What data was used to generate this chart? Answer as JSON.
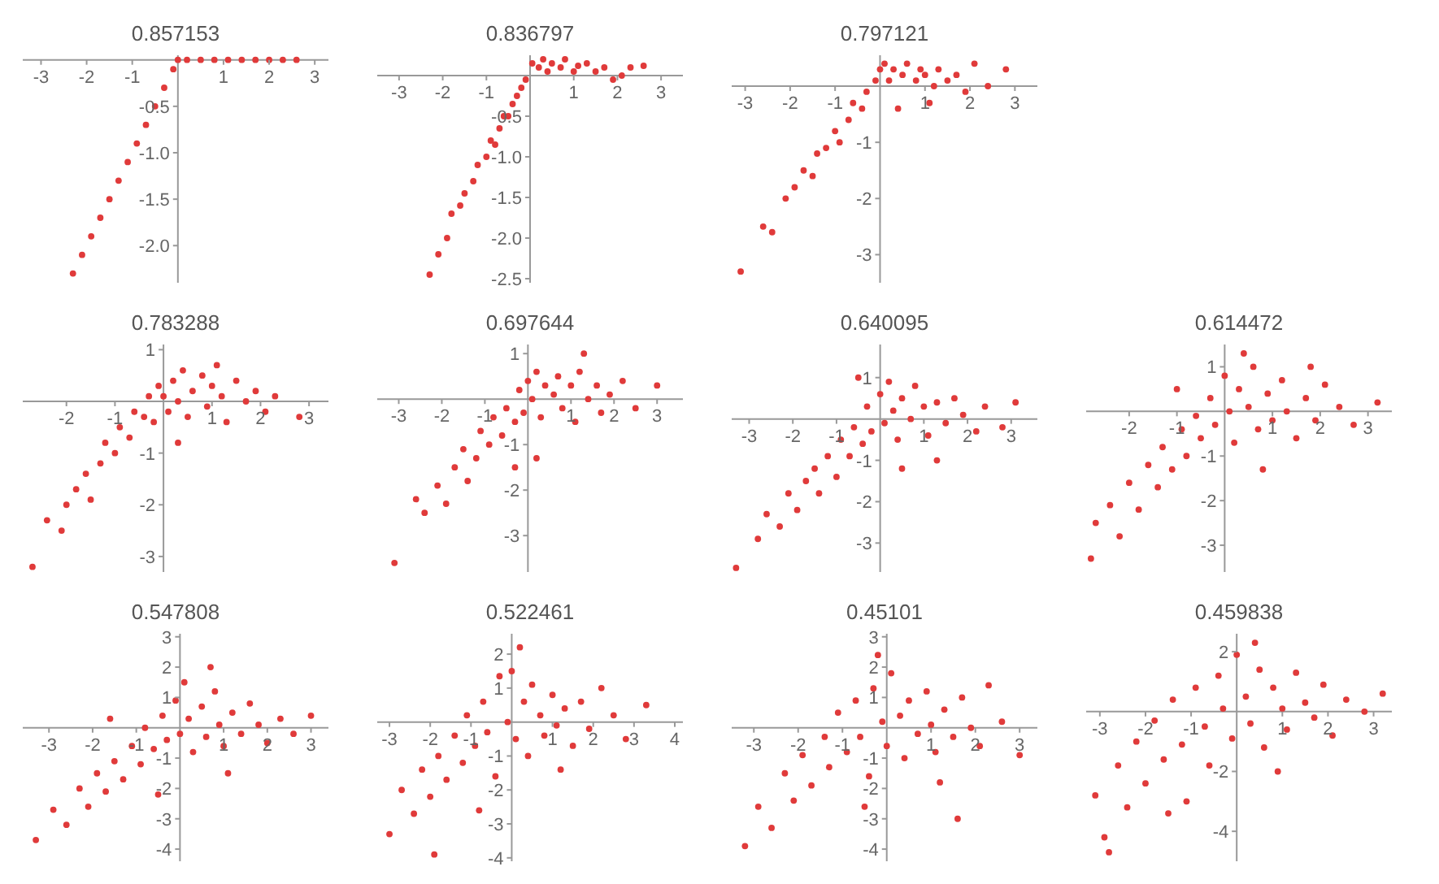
{
  "chart_data": [
    {
      "type": "scatter",
      "title": "0.857153",
      "color": "#e03a3a",
      "marker": "circle",
      "xlim": [
        -3.4,
        3.3
      ],
      "ylim": [
        -2.4,
        0.05
      ],
      "xticks": [
        -3,
        -2,
        -1,
        1,
        2,
        3
      ],
      "yticks": [
        {
          "value": -0.5,
          "label": "-0.5"
        },
        {
          "value": -1,
          "label": "-1.0"
        },
        {
          "value": -1.5,
          "label": "-1.5"
        },
        {
          "value": -2,
          "label": "-2.0"
        }
      ],
      "x": [
        -2.3,
        -2.1,
        -1.9,
        -1.7,
        -1.5,
        -1.3,
        -1.1,
        -0.9,
        -0.7,
        -0.5,
        -0.3,
        -0.1,
        0,
        0.2,
        0.5,
        0.8,
        1.1,
        1.4,
        1.7,
        2.0,
        2.3,
        2.6
      ],
      "values": [
        -2.3,
        -2.1,
        -1.9,
        -1.7,
        -1.5,
        -1.3,
        -1.1,
        -0.9,
        -0.7,
        -0.5,
        -0.3,
        -0.1,
        0,
        0,
        0,
        0,
        0,
        0,
        0,
        0,
        0,
        0
      ]
    },
    {
      "type": "scatter",
      "title": "0.836797",
      "color": "#e03a3a",
      "marker": "circle",
      "xlim": [
        -3.5,
        3.5
      ],
      "ylim": [
        -2.55,
        0.25
      ],
      "xticks": [
        -3,
        -2,
        -1,
        1,
        2,
        3
      ],
      "yticks": [
        {
          "value": -0.5,
          "label": "-0.5"
        },
        {
          "value": -1,
          "label": "-1.0"
        },
        {
          "value": -1.5,
          "label": "-1.5"
        },
        {
          "value": -2,
          "label": "-2.0"
        },
        {
          "value": -2.5,
          "label": "-2.5"
        }
      ],
      "x": [
        -2.3,
        -2.1,
        -1.9,
        -1.8,
        -1.6,
        -1.5,
        -1.3,
        -1.2,
        -1.0,
        -0.9,
        -0.8,
        -0.7,
        -0.6,
        -0.5,
        -0.4,
        -0.3,
        -0.2,
        -0.1,
        0.05,
        0.2,
        0.3,
        0.4,
        0.5,
        0.7,
        0.8,
        1.0,
        1.1,
        1.3,
        1.5,
        1.7,
        1.9,
        2.1,
        2.3,
        2.6
      ],
      "values": [
        -2.45,
        -2.2,
        -2.0,
        -1.7,
        -1.6,
        -1.45,
        -1.3,
        -1.1,
        -1.0,
        -0.8,
        -0.85,
        -0.65,
        -0.5,
        -0.5,
        -0.35,
        -0.25,
        -0.15,
        -0.05,
        0.15,
        0.1,
        0.2,
        0.05,
        0.15,
        0.1,
        0.2,
        0.05,
        0.12,
        0.15,
        0.05,
        0.1,
        -0.05,
        0.0,
        0.1,
        0.12
      ]
    },
    {
      "type": "scatter",
      "title": "0.797121",
      "color": "#e03a3a",
      "marker": "circle",
      "xlim": [
        -3.3,
        3.5
      ],
      "ylim": [
        -3.5,
        0.55
      ],
      "xticks": [
        -3,
        -2,
        -1,
        1,
        2,
        3
      ],
      "yticks": [
        -1,
        -2,
        -3
      ],
      "x": [
        -3.1,
        -2.6,
        -2.4,
        -2.1,
        -1.9,
        -1.7,
        -1.5,
        -1.4,
        -1.2,
        -1.0,
        -0.9,
        -0.7,
        -0.6,
        -0.4,
        -0.3,
        -0.1,
        0.0,
        0.1,
        0.2,
        0.3,
        0.5,
        0.6,
        0.8,
        0.9,
        1.0,
        1.2,
        1.3,
        1.5,
        1.7,
        1.9,
        2.1,
        2.4,
        2.8,
        0.4,
        1.1
      ],
      "values": [
        -3.3,
        -2.5,
        -2.6,
        -2.0,
        -1.8,
        -1.5,
        -1.6,
        -1.2,
        -1.1,
        -0.8,
        -1.0,
        -0.6,
        -0.3,
        -0.4,
        -0.1,
        0.1,
        0.3,
        0.4,
        0.1,
        0.3,
        0.2,
        0.4,
        0.1,
        0.3,
        0.2,
        0.0,
        0.3,
        0.1,
        0.2,
        -0.1,
        0.4,
        0.0,
        0.3,
        -0.4,
        -0.3
      ]
    },
    {
      "type": "scatter",
      "title": "0.783288",
      "color": "#e03a3a",
      "marker": "circle",
      "xlim": [
        -2.9,
        3.4
      ],
      "ylim": [
        -3.3,
        1.1
      ],
      "xticks": [
        -2,
        -1,
        1,
        2,
        3
      ],
      "yticks": [
        1,
        -1,
        -2,
        -3
      ],
      "x": [
        -2.7,
        -2.4,
        -2.1,
        -2.0,
        -1.8,
        -1.6,
        -1.5,
        -1.3,
        -1.2,
        -1.0,
        -0.9,
        -0.7,
        -0.6,
        -0.4,
        -0.3,
        -0.2,
        -0.1,
        0.0,
        0.1,
        0.2,
        0.3,
        0.4,
        0.5,
        0.6,
        0.8,
        0.9,
        1.0,
        1.2,
        1.3,
        1.5,
        1.7,
        1.9,
        2.1,
        2.3,
        2.8,
        0.3,
        1.1
      ],
      "values": [
        -3.2,
        -2.3,
        -2.5,
        -2.0,
        -1.7,
        -1.4,
        -1.9,
        -1.2,
        -0.8,
        -1.0,
        -0.5,
        -0.7,
        -0.2,
        -0.3,
        0.1,
        -0.4,
        0.3,
        0.1,
        -0.2,
        0.4,
        0.0,
        0.6,
        -0.3,
        0.2,
        0.5,
        -0.1,
        0.3,
        0.1,
        -0.4,
        0.4,
        0.0,
        0.2,
        -0.2,
        0.1,
        -0.3,
        -0.8,
        0.7
      ]
    },
    {
      "type": "scatter",
      "title": "0.697644",
      "color": "#e03a3a",
      "marker": "circle",
      "xlim": [
        -3.5,
        3.6
      ],
      "ylim": [
        -3.8,
        1.2
      ],
      "xticks": [
        -3,
        -2,
        -1,
        1,
        2,
        3
      ],
      "yticks": [
        1,
        -1,
        -2,
        -3
      ],
      "x": [
        -3.1,
        -2.6,
        -2.4,
        -2.1,
        -1.9,
        -1.7,
        -1.5,
        -1.4,
        -1.2,
        -1.1,
        -0.9,
        -0.8,
        -0.6,
        -0.5,
        -0.3,
        -0.2,
        -0.1,
        0.0,
        0.1,
        0.2,
        0.3,
        0.4,
        0.6,
        0.7,
        0.8,
        1.0,
        1.1,
        1.2,
        1.4,
        1.6,
        1.7,
        1.9,
        2.2,
        2.5,
        3.0,
        0.2,
        1.3,
        -0.3
      ],
      "values": [
        -3.6,
        -2.2,
        -2.5,
        -1.9,
        -2.3,
        -1.5,
        -1.1,
        -1.8,
        -1.3,
        -0.7,
        -1.0,
        -0.4,
        -0.8,
        -0.2,
        -0.5,
        0.2,
        -0.3,
        0.4,
        0.0,
        0.6,
        -0.4,
        0.3,
        0.1,
        0.5,
        -0.2,
        0.3,
        -0.5,
        0.6,
        0.0,
        0.3,
        -0.3,
        0.1,
        0.4,
        -0.2,
        0.3,
        -1.3,
        1.0,
        -1.5
      ]
    },
    {
      "type": "scatter",
      "title": "0.640095",
      "color": "#e03a3a",
      "marker": "circle",
      "xlim": [
        -3.4,
        3.6
      ],
      "ylim": [
        -3.7,
        1.8
      ],
      "xticks": [
        -3,
        -2,
        -1,
        1,
        2,
        3
      ],
      "yticks": [
        1,
        -1,
        -2,
        -3
      ],
      "x": [
        -3.3,
        -2.8,
        -2.6,
        -2.3,
        -2.1,
        -1.9,
        -1.7,
        -1.5,
        -1.4,
        -1.2,
        -1.0,
        -0.9,
        -0.7,
        -0.6,
        -0.4,
        -0.3,
        -0.2,
        0.0,
        0.1,
        0.2,
        0.3,
        0.4,
        0.5,
        0.7,
        0.8,
        1.0,
        1.1,
        1.3,
        1.5,
        1.7,
        1.9,
        2.2,
        2.4,
        2.8,
        3.1,
        0.5,
        -0.5,
        1.3
      ],
      "values": [
        -3.6,
        -2.9,
        -2.3,
        -2.6,
        -1.8,
        -2.2,
        -1.5,
        -1.2,
        -1.8,
        -0.9,
        -1.4,
        -0.5,
        -0.9,
        -0.2,
        -0.6,
        0.3,
        -0.3,
        0.6,
        -0.1,
        0.9,
        0.2,
        -0.5,
        0.5,
        0.0,
        0.8,
        0.3,
        -0.4,
        0.4,
        -0.1,
        0.5,
        0.1,
        -0.3,
        0.3,
        -0.2,
        0.4,
        -1.2,
        1.0,
        -1.0
      ]
    },
    {
      "type": "scatter",
      "title": "0.614472",
      "color": "#e03a3a",
      "marker": "circle",
      "xlim": [
        -2.9,
        3.5
      ],
      "ylim": [
        -3.6,
        1.5
      ],
      "xticks": [
        -2,
        -1,
        1,
        2,
        3
      ],
      "yticks": [
        1,
        -1,
        -2,
        -3
      ],
      "x": [
        -2.8,
        -2.7,
        -2.4,
        -2.2,
        -2.0,
        -1.8,
        -1.6,
        -1.4,
        -1.3,
        -1.1,
        -0.9,
        -0.8,
        -0.6,
        -0.5,
        -0.3,
        -0.2,
        0.0,
        0.1,
        0.2,
        0.3,
        0.5,
        0.6,
        0.7,
        0.9,
        1.0,
        1.2,
        1.3,
        1.5,
        1.7,
        1.9,
        2.1,
        2.4,
        2.7,
        3.2,
        0.4,
        -1.0,
        1.8,
        0.8
      ],
      "values": [
        -3.3,
        -2.5,
        -2.1,
        -2.8,
        -1.6,
        -2.2,
        -1.2,
        -1.7,
        -0.8,
        -1.3,
        -0.4,
        -1.0,
        -0.1,
        -0.6,
        0.3,
        -0.3,
        0.8,
        0.0,
        -0.7,
        0.5,
        0.1,
        1.0,
        -0.4,
        0.4,
        -0.2,
        0.7,
        0.0,
        -0.6,
        0.3,
        -0.2,
        0.6,
        0.1,
        -0.3,
        0.2,
        1.3,
        0.5,
        1.0,
        -1.3
      ]
    },
    {
      "type": "scatter",
      "title": "0.547808",
      "color": "#e03a3a",
      "marker": "circle",
      "xlim": [
        -3.6,
        3.4
      ],
      "ylim": [
        -4.4,
        3.1
      ],
      "xticks": [
        -3,
        -2,
        -1,
        1,
        2,
        3
      ],
      "yticks": [
        3,
        2,
        1,
        -1,
        -2,
        -3,
        -4
      ],
      "x": [
        -3.3,
        -2.9,
        -2.6,
        -2.3,
        -2.1,
        -1.9,
        -1.7,
        -1.5,
        -1.3,
        -1.1,
        -0.9,
        -0.8,
        -0.6,
        -0.4,
        -0.3,
        -0.1,
        0.0,
        0.1,
        0.2,
        0.3,
        0.5,
        0.6,
        0.8,
        0.9,
        1.0,
        1.2,
        1.4,
        1.6,
        1.8,
        2.0,
        2.3,
        2.6,
        3.0,
        0.7,
        -0.5,
        1.1,
        -1.6
      ],
      "values": [
        -3.7,
        -2.7,
        -3.2,
        -2.0,
        -2.6,
        -1.5,
        -2.1,
        -1.1,
        -1.7,
        -0.6,
        -1.2,
        0.0,
        -0.7,
        0.4,
        -0.4,
        0.9,
        -0.2,
        1.5,
        0.3,
        -0.8,
        0.7,
        -0.3,
        1.2,
        0.1,
        -0.6,
        0.5,
        -0.2,
        0.8,
        0.1,
        -0.5,
        0.3,
        -0.2,
        0.4,
        2.0,
        -2.2,
        -1.5,
        0.3
      ]
    },
    {
      "type": "scatter",
      "title": "0.522461",
      "color": "#e03a3a",
      "marker": "circle",
      "xlim": [
        -3.3,
        4.2
      ],
      "ylim": [
        -4.1,
        2.6
      ],
      "xticks": [
        -3,
        -2,
        -1,
        1,
        2,
        3,
        4
      ],
      "yticks": [
        2,
        1,
        -1,
        -2,
        -3,
        -4
      ],
      "x": [
        -3.0,
        -2.7,
        -2.4,
        -2.2,
        -2.0,
        -1.8,
        -1.6,
        -1.4,
        -1.2,
        -1.1,
        -0.9,
        -0.7,
        -0.6,
        -0.4,
        -0.3,
        -0.1,
        0.0,
        0.1,
        0.3,
        0.4,
        0.5,
        0.7,
        0.8,
        1.0,
        1.1,
        1.3,
        1.5,
        1.7,
        1.9,
        2.2,
        2.5,
        2.8,
        3.3,
        0.2,
        -0.8,
        1.2,
        -1.9
      ],
      "values": [
        -3.3,
        -2.0,
        -2.7,
        -1.4,
        -2.2,
        -1.0,
        -1.7,
        -0.4,
        -1.2,
        0.2,
        -0.7,
        0.6,
        -0.3,
        -1.6,
        1.35,
        0.0,
        1.5,
        -0.5,
        0.6,
        -1.0,
        1.1,
        0.2,
        -0.4,
        0.8,
        -0.1,
        0.4,
        -0.7,
        0.6,
        -0.2,
        1.0,
        0.2,
        -0.5,
        0.5,
        2.2,
        -2.6,
        -1.4,
        -3.9
      ]
    },
    {
      "type": "scatter",
      "title": "0.45101",
      "color": "#e03a3a",
      "marker": "circle",
      "xlim": [
        -3.5,
        3.4
      ],
      "ylim": [
        -4.4,
        3.1
      ],
      "xticks": [
        -3,
        -2,
        -1,
        1,
        2,
        3
      ],
      "yticks": [
        3,
        2,
        1,
        -1,
        -2,
        -3,
        -4
      ],
      "x": [
        -3.2,
        -2.9,
        -2.6,
        -2.3,
        -2.1,
        -1.9,
        -1.7,
        -1.4,
        -1.3,
        -1.1,
        -0.9,
        -0.7,
        -0.6,
        -0.4,
        -0.3,
        -0.1,
        0.0,
        0.1,
        0.3,
        0.4,
        0.5,
        0.7,
        0.9,
        1.0,
        1.1,
        1.3,
        1.5,
        1.7,
        1.9,
        2.1,
        2.3,
        2.6,
        3.0,
        -0.2,
        -0.5,
        1.2,
        1.6
      ],
      "values": [
        -3.9,
        -2.6,
        -3.3,
        -1.5,
        -2.4,
        -0.9,
        -1.9,
        -0.3,
        -1.3,
        0.5,
        -0.8,
        0.9,
        -0.3,
        -1.6,
        1.3,
        0.2,
        -0.6,
        1.8,
        0.4,
        -1.0,
        0.9,
        -0.2,
        1.2,
        0.1,
        -0.8,
        0.6,
        -0.3,
        1.0,
        0.0,
        -0.6,
        1.4,
        0.2,
        -0.9,
        2.4,
        -2.6,
        -1.8,
        -3.0
      ]
    },
    {
      "type": "scatter",
      "title": "0.459838",
      "color": "#e03a3a",
      "marker": "circle",
      "xlim": [
        -3.3,
        3.4
      ],
      "ylim": [
        -5,
        2.6
      ],
      "xticks": [
        -3,
        -2,
        -1,
        1,
        2,
        3
      ],
      "yticks": [
        2,
        -2,
        -4
      ],
      "x": [
        -3.1,
        -2.9,
        -2.6,
        -2.4,
        -2.2,
        -2.0,
        -1.8,
        -1.6,
        -1.4,
        -1.2,
        -1.1,
        -0.9,
        -0.7,
        -0.6,
        -0.4,
        -0.3,
        -0.1,
        0.0,
        0.2,
        0.3,
        0.5,
        0.6,
        0.8,
        1.0,
        1.1,
        1.3,
        1.5,
        1.7,
        1.9,
        2.1,
        2.4,
        2.8,
        3.2,
        0.4,
        -1.5,
        0.9,
        -2.8
      ],
      "values": [
        -2.8,
        -4.2,
        -1.8,
        -3.2,
        -1.0,
        -2.4,
        -0.3,
        -1.6,
        0.4,
        -1.1,
        -3.0,
        0.8,
        -0.5,
        -1.8,
        1.2,
        0.1,
        -0.9,
        1.9,
        0.5,
        -0.4,
        1.4,
        -1.2,
        0.8,
        0.1,
        -0.6,
        1.3,
        0.3,
        -0.2,
        0.9,
        -0.8,
        0.4,
        0.0,
        0.6,
        2.3,
        -3.4,
        -2.0,
        -4.7
      ]
    }
  ]
}
